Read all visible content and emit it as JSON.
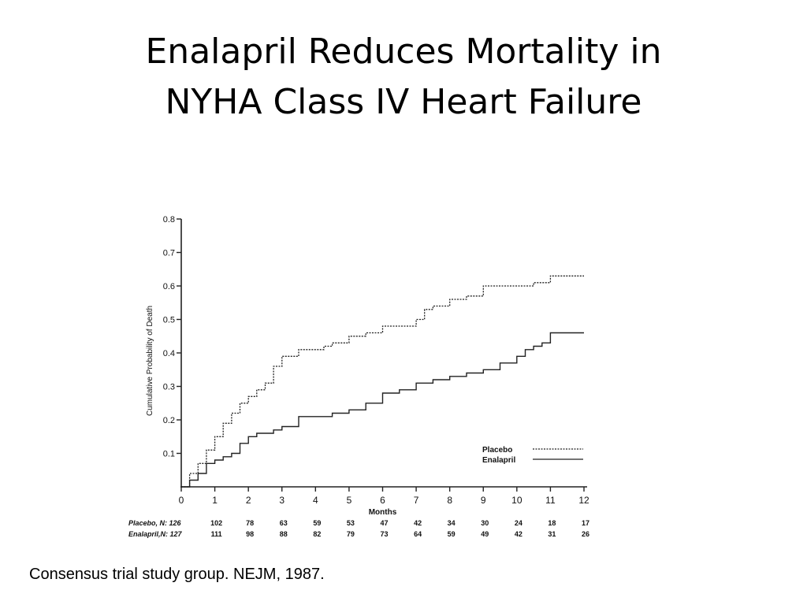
{
  "slide": {
    "title_line1": "Enalapril Reduces Mortality in",
    "title_line2": "NYHA Class IV Heart Failure",
    "citation": "Consensus trial study group. NEJM, 1987."
  },
  "chart_data": {
    "type": "line",
    "title": "",
    "xlabel": "Months",
    "ylabel": "Cumulative Probability of Death",
    "xlim": [
      0,
      12
    ],
    "ylim": [
      0,
      0.8
    ],
    "x_ticks": [
      "0",
      "1",
      "2",
      "3",
      "4",
      "5",
      "6",
      "7",
      "8",
      "9",
      "10",
      "11",
      "12"
    ],
    "y_ticks": [
      "0.1",
      "0.2",
      "0.3",
      "0.4",
      "0.5",
      "0.6",
      "0.7",
      "0.8"
    ],
    "grid": false,
    "legend_position": "bottom-right",
    "series": [
      {
        "name": "Placebo",
        "style": "dashed",
        "color": "#222222",
        "x": [
          0,
          0.25,
          0.5,
          0.75,
          1.0,
          1.25,
          1.5,
          1.75,
          2.0,
          2.25,
          2.5,
          2.75,
          3.0,
          3.5,
          4.0,
          4.25,
          4.5,
          5.0,
          5.5,
          6.0,
          6.5,
          7.0,
          7.25,
          7.5,
          8.0,
          8.5,
          9.0,
          9.5,
          10.0,
          10.5,
          11.0,
          11.5,
          12.0
        ],
        "y": [
          0,
          0.04,
          0.07,
          0.11,
          0.15,
          0.19,
          0.22,
          0.25,
          0.27,
          0.29,
          0.31,
          0.36,
          0.39,
          0.41,
          0.41,
          0.42,
          0.43,
          0.45,
          0.46,
          0.48,
          0.48,
          0.5,
          0.53,
          0.54,
          0.56,
          0.57,
          0.6,
          0.6,
          0.6,
          0.61,
          0.63,
          0.63,
          0.63
        ]
      },
      {
        "name": "Enalapril",
        "style": "solid",
        "color": "#222222",
        "x": [
          0,
          0.25,
          0.5,
          0.75,
          1.0,
          1.25,
          1.5,
          1.75,
          2.0,
          2.25,
          2.5,
          2.75,
          3.0,
          3.5,
          4.0,
          4.5,
          5.0,
          5.5,
          6.0,
          6.5,
          7.0,
          7.5,
          8.0,
          8.5,
          9.0,
          9.5,
          10.0,
          10.25,
          10.5,
          10.75,
          11.0,
          11.5,
          12.0
        ],
        "y": [
          0,
          0.02,
          0.04,
          0.07,
          0.08,
          0.09,
          0.1,
          0.13,
          0.15,
          0.16,
          0.16,
          0.17,
          0.18,
          0.21,
          0.21,
          0.22,
          0.23,
          0.25,
          0.28,
          0.29,
          0.31,
          0.32,
          0.33,
          0.34,
          0.35,
          0.37,
          0.39,
          0.41,
          0.42,
          0.43,
          0.46,
          0.46,
          0.46
        ]
      }
    ],
    "at_risk": {
      "rows": [
        {
          "label": "Placebo, N: 126",
          "values": [
            "102",
            "78",
            "63",
            "59",
            "53",
            "47",
            "42",
            "34",
            "30",
            "24",
            "18",
            "17"
          ]
        },
        {
          "label": "Enalapril,N: 127",
          "values": [
            "111",
            "98",
            "88",
            "82",
            "79",
            "73",
            "64",
            "59",
            "49",
            "42",
            "31",
            "26"
          ]
        }
      ]
    }
  }
}
